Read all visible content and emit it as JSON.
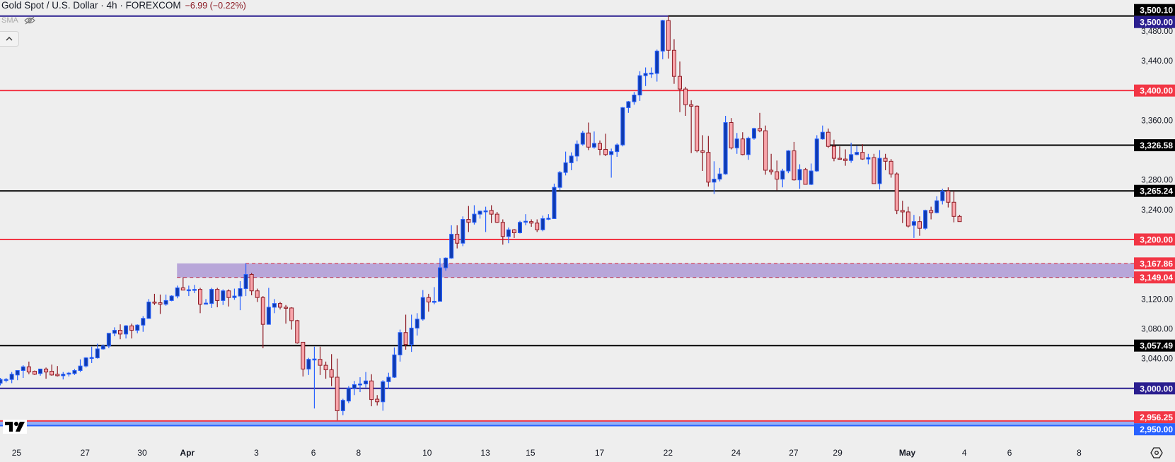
{
  "header": {
    "title": "Gold Spot / U.S. Dollar · 4h · FOREXCOM",
    "change": "−6.99 (−0.22%)",
    "indicator_label": "SMA"
  },
  "icons": {
    "visibility": "eye-crossed-icon",
    "collapse": "chevron-up-icon",
    "logo": "tradingview-logo-icon",
    "settings": "settings-icon"
  },
  "colors": {
    "background": "#eeeeee",
    "up_body": "#0f3bb0",
    "up_border": "#2962ff",
    "down_body": "#f8a5ab",
    "down_border": "#8e1b24",
    "zone": "#b8a6d9"
  },
  "chart_data": {
    "type": "candlestick",
    "title": "Gold Spot / U.S. Dollar · 4h · FOREXCOM",
    "ylim": [
      2925.8,
      3521.6
    ],
    "xlim": [
      0,
      198.6
    ],
    "ohlc_format": [
      "open",
      "high",
      "low",
      "close"
    ],
    "candles": [
      [
        3007,
        3014,
        3004,
        3012
      ],
      [
        3012,
        3014,
        3008,
        3012
      ],
      [
        3012,
        3022,
        3007,
        3019
      ],
      [
        3018,
        3024,
        3011,
        3024
      ],
      [
        3024,
        3031,
        3014,
        3029
      ],
      [
        3029,
        3036,
        3019,
        3022
      ],
      [
        3023,
        3024,
        3018,
        3019
      ],
      [
        3020,
        3026,
        3017,
        3026
      ],
      [
        3026,
        3028,
        3013,
        3022
      ],
      [
        3023,
        3032,
        3017,
        3018
      ],
      [
        3019,
        3030,
        3016,
        3017
      ],
      [
        3017,
        3022,
        3012,
        3019
      ],
      [
        3020,
        3022,
        3016,
        3020.5
      ],
      [
        3020,
        3026,
        3018,
        3024
      ],
      [
        3024,
        3039,
        3022,
        3030
      ],
      [
        3030,
        3042,
        3028,
        3041
      ],
      [
        3041,
        3056,
        3034,
        3041.5
      ],
      [
        3041,
        3060,
        3040,
        3053
      ],
      [
        3053,
        3059,
        3052,
        3057
      ],
      [
        3057,
        3074,
        3054,
        3074
      ],
      [
        3074,
        3082,
        3070,
        3078
      ],
      [
        3078,
        3086,
        3066,
        3073
      ],
      [
        3073,
        3085,
        3067,
        3084
      ],
      [
        3084,
        3087,
        3067,
        3078
      ],
      [
        3078,
        3086,
        3074,
        3085
      ],
      [
        3085,
        3097,
        3076,
        3094
      ],
      [
        3094,
        3120,
        3094,
        3116
      ],
      [
        3116,
        3127,
        3112,
        3115
      ],
      [
        3115,
        3126,
        3100,
        3113
      ],
      [
        3113,
        3126,
        3111,
        3118
      ],
      [
        3118,
        3125,
        3117,
        3124
      ],
      [
        3124,
        3138,
        3121,
        3135
      ],
      [
        3135,
        3149,
        3132,
        3132
      ],
      [
        3132,
        3138,
        3124,
        3132.5
      ],
      [
        3132,
        3139,
        3128,
        3133
      ],
      [
        3133,
        3135,
        3101,
        3113
      ],
      [
        3114,
        3120,
        3114,
        3114.5
      ],
      [
        3114,
        3135,
        3108,
        3133
      ],
      [
        3133,
        3135,
        3109,
        3118
      ],
      [
        3118,
        3133,
        3112,
        3131
      ],
      [
        3131,
        3133,
        3110,
        3122
      ],
      [
        3122,
        3134,
        3119,
        3124
      ],
      [
        3124,
        3144,
        3105,
        3134
      ],
      [
        3134,
        3168,
        3124,
        3153
      ],
      [
        3153,
        3155,
        3125,
        3131
      ],
      [
        3131,
        3134,
        3116,
        3122
      ],
      [
        3122,
        3124,
        3054,
        3086
      ],
      [
        3086,
        3135,
        3086,
        3109
      ],
      [
        3109,
        3120,
        3101,
        3114
      ],
      [
        3114,
        3116,
        3106,
        3109
      ],
      [
        3109,
        3112,
        3087,
        3108
      ],
      [
        3108,
        3109,
        3079,
        3091
      ],
      [
        3091,
        3092,
        3060,
        3061
      ],
      [
        3062,
        3062,
        3016,
        3026
      ],
      [
        3026,
        3041,
        3018,
        3039
      ],
      [
        3039,
        3056,
        2973,
        3039.5
      ],
      [
        3039,
        3056,
        3018,
        3031
      ],
      [
        3031,
        3036,
        3013,
        3025
      ],
      [
        3025,
        3046,
        3003,
        3015
      ],
      [
        3015,
        3040,
        2957,
        2970
      ],
      [
        2970,
        2986,
        2964,
        2984
      ],
      [
        2983,
        3003,
        2980,
        3000
      ],
      [
        3000,
        3010,
        2991,
        3005
      ],
      [
        3005,
        3015,
        2995,
        3006
      ],
      [
        3006,
        3022,
        3001,
        3010
      ],
      [
        3010,
        3019,
        2976,
        2985
      ],
      [
        2985.5,
        2991,
        2977,
        2982
      ],
      [
        2982,
        3011,
        2970,
        3009
      ],
      [
        3009,
        3021,
        2999,
        3015
      ],
      [
        3015,
        3055,
        3014,
        3045
      ],
      [
        3045,
        3079,
        3036,
        3075
      ],
      [
        3075,
        3099,
        3052,
        3059
      ],
      [
        3059,
        3099,
        3049,
        3081
      ],
      [
        3081,
        3101,
        3071,
        3093
      ],
      [
        3093,
        3132,
        3091,
        3122
      ],
      [
        3122,
        3127,
        3103,
        3116
      ],
      [
        3116,
        3136,
        3113,
        3117
      ],
      [
        3117,
        3175,
        3117,
        3162
      ],
      [
        3162,
        3176,
        3158,
        3175
      ],
      [
        3175,
        3219,
        3174,
        3207
      ],
      [
        3207,
        3219,
        3188,
        3195
      ],
      [
        3195,
        3231,
        3191,
        3227
      ],
      [
        3227,
        3245,
        3210,
        3223
      ],
      [
        3223,
        3246,
        3220,
        3234
      ],
      [
        3234,
        3239,
        3228,
        3238
      ],
      [
        3238,
        3244,
        3210,
        3238.5
      ],
      [
        3239,
        3246,
        3222,
        3234
      ],
      [
        3234,
        3237,
        3222,
        3223
      ],
      [
        3223,
        3227,
        3193,
        3204
      ],
      [
        3204,
        3216,
        3195,
        3213
      ],
      [
        3213,
        3214,
        3202,
        3209
      ],
      [
        3209,
        3225,
        3208,
        3223
      ],
      [
        3224,
        3234,
        3219,
        3224.5
      ],
      [
        3224,
        3227,
        3217,
        3222
      ],
      [
        3222,
        3227,
        3210,
        3213
      ],
      [
        3213,
        3232,
        3211,
        3228
      ],
      [
        3228,
        3234,
        3226,
        3228.5
      ],
      [
        3228,
        3275,
        3228,
        3270
      ],
      [
        3270,
        3292,
        3266,
        3290
      ],
      [
        3290,
        3318,
        3286,
        3303
      ],
      [
        3303,
        3317,
        3293,
        3312
      ],
      [
        3312,
        3333,
        3305,
        3328
      ],
      [
        3328,
        3346,
        3326,
        3343
      ],
      [
        3343,
        3357,
        3320,
        3324
      ],
      [
        3324,
        3345,
        3322,
        3329
      ],
      [
        3329,
        3333,
        3313,
        3321
      ],
      [
        3321,
        3342,
        3312,
        3314
      ],
      [
        3314,
        3322,
        3283,
        3318
      ],
      [
        3318,
        3329,
        3311,
        3327
      ],
      [
        3327,
        3378,
        3325,
        3377
      ],
      [
        3377,
        3386,
        3370,
        3385
      ],
      [
        3385,
        3398,
        3381,
        3394
      ],
      [
        3394,
        3426,
        3386,
        3420
      ],
      [
        3420,
        3431,
        3406,
        3423
      ],
      [
        3423,
        3431,
        3417,
        3423.5
      ],
      [
        3423,
        3455,
        3412,
        3453
      ],
      [
        3453,
        3495,
        3442,
        3494
      ],
      [
        3494,
        3500.1,
        3443,
        3454
      ],
      [
        3454,
        3469,
        3409,
        3419
      ],
      [
        3419,
        3439,
        3371,
        3402
      ],
      [
        3402,
        3405,
        3366,
        3381
      ],
      [
        3381,
        3387,
        3316,
        3379
      ],
      [
        3379,
        3380,
        3317,
        3319
      ],
      [
        3319,
        3340,
        3292,
        3317
      ],
      [
        3317,
        3339,
        3271,
        3277
      ],
      [
        3277,
        3305,
        3261,
        3281
      ],
      [
        3281,
        3296,
        3278,
        3288
      ],
      [
        3288,
        3366,
        3287,
        3357
      ],
      [
        3357,
        3363,
        3321,
        3323
      ],
      [
        3323,
        3343,
        3315,
        3335
      ],
      [
        3335,
        3344,
        3313,
        3314
      ],
      [
        3314,
        3338,
        3307,
        3336
      ],
      [
        3336,
        3350,
        3334,
        3349
      ],
      [
        3349,
        3370,
        3344,
        3346
      ],
      [
        3346,
        3353,
        3287,
        3293
      ],
      [
        3293,
        3315,
        3287,
        3291
      ],
      [
        3291,
        3306,
        3266,
        3281
      ],
      [
        3281,
        3295,
        3270,
        3292
      ],
      [
        3292,
        3320,
        3289,
        3319
      ],
      [
        3319,
        3331,
        3279,
        3280
      ],
      [
        3280,
        3301,
        3268,
        3294
      ],
      [
        3294,
        3296,
        3274,
        3274
      ],
      [
        3274,
        3302,
        3273,
        3292
      ],
      [
        3292,
        3340,
        3291,
        3335
      ],
      [
        3335,
        3353,
        3334,
        3344
      ],
      [
        3344,
        3349,
        3323,
        3325
      ],
      [
        3325,
        3334,
        3305,
        3309
      ],
      [
        3309,
        3325,
        3308,
        3308
      ],
      [
        3308,
        3321,
        3299,
        3306
      ],
      [
        3306,
        3330,
        3303,
        3314
      ],
      [
        3314,
        3326,
        3313,
        3317
      ],
      [
        3317,
        3328,
        3307,
        3308
      ],
      [
        3308,
        3315,
        3301,
        3310
      ],
      [
        3310,
        3315,
        3275,
        3275
      ],
      [
        3275,
        3320,
        3267,
        3309
      ],
      [
        3309,
        3315,
        3293,
        3305
      ],
      [
        3305,
        3308,
        3283,
        3288
      ],
      [
        3288,
        3290,
        3234,
        3239
      ],
      [
        3239,
        3252,
        3222,
        3237
      ],
      [
        3237,
        3244,
        3216,
        3218
      ],
      [
        3219,
        3233,
        3202,
        3224
      ],
      [
        3224,
        3231,
        3205,
        3215
      ],
      [
        3215,
        3240,
        3213,
        3239
      ],
      [
        3239,
        3244,
        3227,
        3236
      ],
      [
        3236,
        3258,
        3235,
        3252
      ],
      [
        3252,
        3268,
        3247,
        3265
      ],
      [
        3265,
        3270,
        3243,
        3250
      ],
      [
        3250,
        3265,
        3223,
        3231
      ],
      [
        3231,
        3233,
        3224,
        3224
      ]
    ],
    "levels": [
      {
        "price": 3500.1,
        "label": "3,500.10",
        "color": "#000000",
        "badge": "#000000",
        "style": "solid",
        "start_index": 117
      },
      {
        "price": 3500.0,
        "label": "3,500.00",
        "color": "#2a1e8f",
        "badge": "#2a1e8f",
        "style": "solid",
        "start_index": 0,
        "end_index": 117
      },
      {
        "price": 3400.0,
        "label": "3,400.00",
        "color": "#f23645",
        "badge": "#f23645",
        "style": "solid",
        "start_index": 0
      },
      {
        "price": 3326.58,
        "label": "3,326.58",
        "color": "#000000",
        "badge": "#000000",
        "style": "solid",
        "start_index": 145.3
      },
      {
        "price": 3265.24,
        "label": "3,265.24",
        "color": "#000000",
        "badge": "#000000",
        "style": "solid",
        "start_index": 0
      },
      {
        "price": 3200.0,
        "label": "3,200.00",
        "color": "#f23645",
        "badge": "#f23645",
        "style": "solid",
        "start_index": 0
      },
      {
        "price": 3167.86,
        "label": "3,167.86",
        "color": "#d94a5e",
        "badge": "#f23645",
        "style": "dashed",
        "start_index": 43
      },
      {
        "price": 3149.04,
        "label": "3,149.04",
        "color": "#b5375c",
        "badge": "#f23645",
        "style": "dashed",
        "start_index": 31
      },
      {
        "price": 3057.49,
        "label": "3,057.49",
        "color": "#000000",
        "badge": "#000000",
        "style": "solid",
        "start_index": 0
      },
      {
        "price": 3000.0,
        "label": "3,000.00",
        "color": "#2a1e8f",
        "badge": "#2a1e8f",
        "style": "solid",
        "start_index": 0
      },
      {
        "price": 2956.25,
        "label": "2,956.25",
        "color": "#f23645",
        "badge": "#f23645",
        "style": "solid",
        "start_index": 0
      },
      {
        "price": 2950.0,
        "label": "2,950.00",
        "color": "#2962ff",
        "badge": "#2962ff",
        "style": "solid",
        "start_index": 0
      }
    ],
    "zones": [
      {
        "top": 3167.86,
        "bottom": 3149.04,
        "color": "#b8a6d9",
        "start_index": 31
      },
      {
        "top": 2956.25,
        "bottom": 2950.0,
        "color": "#93aef5",
        "start_index": 0
      }
    ],
    "y_ticks": [
      {
        "value": 3480,
        "label": "3,480.00"
      },
      {
        "value": 3440,
        "label": "3,440.00"
      },
      {
        "value": 3360,
        "label": "3,360.00"
      },
      {
        "value": 3280,
        "label": "3,280.00"
      },
      {
        "value": 3240,
        "label": "3,240.00"
      },
      {
        "value": 3120,
        "label": "3,120.00"
      },
      {
        "value": 3080,
        "label": "3,080.00"
      },
      {
        "value": 3040,
        "label": "3,040.00"
      }
    ],
    "x_ticks": [
      {
        "index": 2.9,
        "label": "25",
        "bold": false
      },
      {
        "index": 14.9,
        "label": "27",
        "bold": false
      },
      {
        "index": 24.9,
        "label": "30",
        "bold": false
      },
      {
        "index": 32.8,
        "label": "Apr",
        "bold": true
      },
      {
        "index": 44.9,
        "label": "3",
        "bold": false
      },
      {
        "index": 54.9,
        "label": "6",
        "bold": false
      },
      {
        "index": 62.8,
        "label": "8",
        "bold": false
      },
      {
        "index": 74.8,
        "label": "10",
        "bold": false
      },
      {
        "index": 85.0,
        "label": "13",
        "bold": false
      },
      {
        "index": 92.9,
        "label": "15",
        "bold": false
      },
      {
        "index": 105.0,
        "label": "17",
        "bold": false
      },
      {
        "index": 117.0,
        "label": "22",
        "bold": false
      },
      {
        "index": 128.9,
        "label": "24",
        "bold": false
      },
      {
        "index": 139.0,
        "label": "27",
        "bold": false
      },
      {
        "index": 146.7,
        "label": "29",
        "bold": false
      },
      {
        "index": 158.9,
        "label": "May",
        "bold": true
      },
      {
        "index": 168.9,
        "label": "4",
        "bold": false
      },
      {
        "index": 176.8,
        "label": "6",
        "bold": false
      },
      {
        "index": 189.0,
        "label": "8",
        "bold": false
      }
    ]
  }
}
